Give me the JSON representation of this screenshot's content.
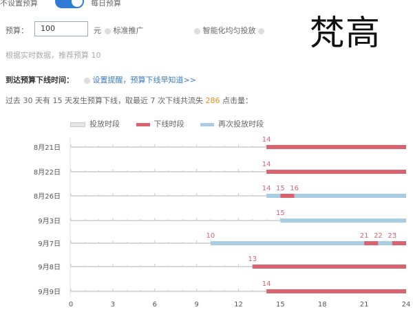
{
  "budget_mode": {
    "off_label": "不设置预算",
    "on_label": "每日预算",
    "toggle_on": true
  },
  "budget": {
    "label": "预算：",
    "value": "100",
    "unit": "元",
    "option1": "标准推广",
    "option2": "智能化均匀投放"
  },
  "recommend": "根据实时数据，推荐预算 10",
  "offline_time": {
    "label": "到达预算下线时间：",
    "link": "设置提醒，预算下线早知道>>"
  },
  "summary": {
    "prefix": "过去 30 天有 15 天发生预算下线，取最近 7 次下线共流失 ",
    "clicks": "286",
    "suffix": " 点击量："
  },
  "watermark": "梵高",
  "colors": {
    "active": "#d3d3d3",
    "offline": "#d9636f",
    "resumed": "#a9cde3",
    "accent": "#2f7bd6"
  },
  "chart_data": {
    "type": "timeline",
    "legend": [
      {
        "name": "投放时段",
        "color": "#d3d3d3"
      },
      {
        "name": "下线时段",
        "color": "#d9636f"
      },
      {
        "name": "再次投放时段",
        "color": "#a9cde3"
      }
    ],
    "xlim": [
      0,
      24
    ],
    "xticks": [
      0,
      3,
      6,
      9,
      12,
      15,
      18,
      21,
      24
    ],
    "rows": [
      {
        "label": "8月21日",
        "segments": [
          [
            0,
            14,
            "active"
          ],
          [
            14,
            24,
            "offline"
          ]
        ],
        "marks": [
          14
        ]
      },
      {
        "label": "8月22日",
        "segments": [
          [
            0,
            14,
            "active"
          ],
          [
            14,
            24,
            "offline"
          ]
        ],
        "marks": [
          14
        ]
      },
      {
        "label": "8月26日",
        "segments": [
          [
            0,
            14,
            "active"
          ],
          [
            14,
            15,
            "resumed"
          ],
          [
            15,
            16,
            "offline"
          ],
          [
            16,
            24,
            "resumed"
          ]
        ],
        "marks": [
          14,
          15,
          16
        ]
      },
      {
        "label": "9月3日",
        "segments": [
          [
            0,
            15,
            "active"
          ],
          [
            15,
            24,
            "resumed"
          ]
        ],
        "marks": [
          15
        ]
      },
      {
        "label": "9月7日",
        "segments": [
          [
            0,
            10,
            "active"
          ],
          [
            10,
            21,
            "resumed"
          ],
          [
            21,
            22,
            "offline"
          ],
          [
            22,
            23,
            "resumed"
          ],
          [
            23,
            24,
            "offline"
          ]
        ],
        "marks": [
          10,
          21,
          22,
          23
        ]
      },
      {
        "label": "9月8日",
        "segments": [
          [
            0,
            13,
            "active"
          ],
          [
            13,
            24,
            "offline"
          ]
        ],
        "marks": [
          13
        ]
      },
      {
        "label": "9月9日",
        "segments": [
          [
            0,
            14,
            "active"
          ],
          [
            14,
            24,
            "offline"
          ]
        ],
        "marks": [
          14
        ]
      }
    ]
  }
}
